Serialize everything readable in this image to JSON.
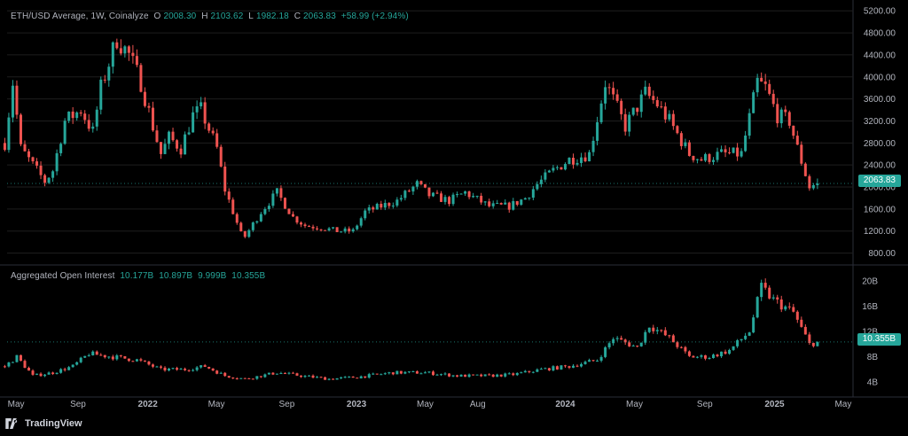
{
  "colors": {
    "up": "#26a69a",
    "down": "#ef5350",
    "grid": "#1e1e1e",
    "axis_text": "#b2b5be",
    "bg": "#000000"
  },
  "legend": {
    "price": {
      "title": "ETH/USD Average, 1W, Coinalyze",
      "o_label": "O",
      "o": "2008.30",
      "h_label": "H",
      "h": "2103.62",
      "l_label": "L",
      "l": "1982.18",
      "c_label": "C",
      "c": "2063.83",
      "change": "+58.99 (+2.94%)"
    },
    "oi": {
      "title": "Aggregated Open Interest",
      "v1": "10.177B",
      "v2": "10.897B",
      "v3": "9.999B",
      "v4": "10.355B"
    }
  },
  "price_tag": "2063.83",
  "oi_tag": "10.355B",
  "branding": {
    "name": "TradingView",
    "icon": "tradingview-logo-icon"
  },
  "chart_data": [
    {
      "type": "candlestick",
      "title": "ETH/USD Average, 1W, Coinalyze",
      "y_ticks": [
        "5200.00",
        "4800.00",
        "4400.00",
        "4000.00",
        "3600.00",
        "3200.00",
        "2800.00",
        "2400.00",
        "2000.00",
        "1600.00",
        "1200.00",
        "800.00"
      ],
      "ylim": [
        600,
        5300
      ],
      "x_ticks": [
        "May",
        "Sep",
        "2022",
        "May",
        "Sep",
        "2023",
        "May",
        "Aug",
        "2024",
        "May",
        "Sep",
        "2025",
        "May"
      ],
      "x_tick_dates": [
        "2021-05-01",
        "2021-09-01",
        "2022-01-01",
        "2022-05-01",
        "2022-09-01",
        "2023-01-01",
        "2023-05-01",
        "2023-08-01",
        "2024-01-01",
        "2024-05-01",
        "2024-09-01",
        "2025-01-01",
        "2025-05-01"
      ],
      "xlim": [
        "2021-04-30",
        "2025-05-12"
      ],
      "close_path": {
        "dates": [
          "2021-04-26",
          "2021-05-10",
          "2021-05-24",
          "2021-06-14",
          "2021-07-05",
          "2021-07-19",
          "2021-08-09",
          "2021-09-06",
          "2021-09-27",
          "2021-10-11",
          "2021-11-08",
          "2021-11-29",
          "2021-12-20",
          "2022-01-10",
          "2022-01-24",
          "2022-02-07",
          "2022-02-28",
          "2022-03-21",
          "2022-04-04",
          "2022-05-02",
          "2022-05-16",
          "2022-06-13",
          "2022-06-20",
          "2022-07-18",
          "2022-08-15",
          "2022-09-12",
          "2022-10-03",
          "2022-11-07",
          "2022-11-28",
          "2022-12-26",
          "2023-01-16",
          "2023-02-13",
          "2023-03-13",
          "2023-04-17",
          "2023-05-08",
          "2023-06-12",
          "2023-07-10",
          "2023-08-21",
          "2023-09-25",
          "2023-10-23",
          "2023-11-13",
          "2023-12-11",
          "2024-01-08",
          "2024-02-12",
          "2024-03-11",
          "2024-04-15",
          "2024-05-20",
          "2024-06-10",
          "2024-07-01",
          "2024-08-05",
          "2024-08-26",
          "2024-09-30",
          "2024-11-04",
          "2024-12-02",
          "2024-12-16",
          "2025-01-06",
          "2025-01-27",
          "2025-02-10",
          "2025-03-03",
          "2025-03-17"
        ],
        "values": [
          2800,
          3900,
          2700,
          2400,
          2100,
          2300,
          3200,
          3400,
          3000,
          3800,
          4700,
          4400,
          3900,
          3100,
          2600,
          2900,
          2700,
          3300,
          3400,
          2700,
          1950,
          1150,
          1100,
          1550,
          1900,
          1450,
          1300,
          1250,
          1200,
          1200,
          1550,
          1650,
          1750,
          2050,
          1850,
          1750,
          1900,
          1650,
          1650,
          1800,
          2050,
          2300,
          2500,
          2600,
          3900,
          3100,
          3700,
          3500,
          3200,
          2600,
          2500,
          2600,
          2600,
          3900,
          3800,
          3300,
          3200,
          2700,
          2000,
          2064
        ]
      },
      "last_close": 2063.83
    },
    {
      "type": "candlestick",
      "title": "Aggregated Open Interest",
      "y_ticks": [
        "20B",
        "16B",
        "12B",
        "8B",
        "4B"
      ],
      "ylim": [
        2.2,
        22.4
      ],
      "values_unit": "B",
      "close_path": {
        "dates": [
          "2021-04-26",
          "2021-05-17",
          "2021-06-14",
          "2021-07-19",
          "2021-08-23",
          "2021-09-20",
          "2021-11-01",
          "2021-12-13",
          "2022-01-24",
          "2022-03-07",
          "2022-04-11",
          "2022-05-16",
          "2022-06-20",
          "2022-08-15",
          "2022-09-26",
          "2022-11-14",
          "2023-01-02",
          "2023-03-06",
          "2023-05-01",
          "2023-06-26",
          "2023-08-21",
          "2023-10-02",
          "2023-11-20",
          "2024-01-08",
          "2024-02-26",
          "2024-03-25",
          "2024-05-06",
          "2024-05-27",
          "2024-07-01",
          "2024-08-05",
          "2024-09-09",
          "2024-10-14",
          "2024-11-18",
          "2024-12-09",
          "2024-12-30",
          "2025-02-03",
          "2025-03-03",
          "2025-03-17"
        ],
        "values": [
          6.5,
          8.0,
          5.0,
          5.5,
          6.5,
          8.5,
          8.0,
          7.5,
          6.0,
          6.0,
          6.5,
          5.0,
          4.5,
          5.5,
          5.0,
          4.5,
          4.8,
          5.5,
          5.5,
          5.0,
          5.0,
          5.2,
          6.0,
          6.5,
          7.5,
          11.0,
          9.5,
          13.0,
          11.0,
          8.0,
          8.0,
          9.0,
          12.0,
          19.0,
          17.0,
          15.0,
          10.0,
          10.355
        ]
      },
      "last_close": 10.355
    }
  ]
}
